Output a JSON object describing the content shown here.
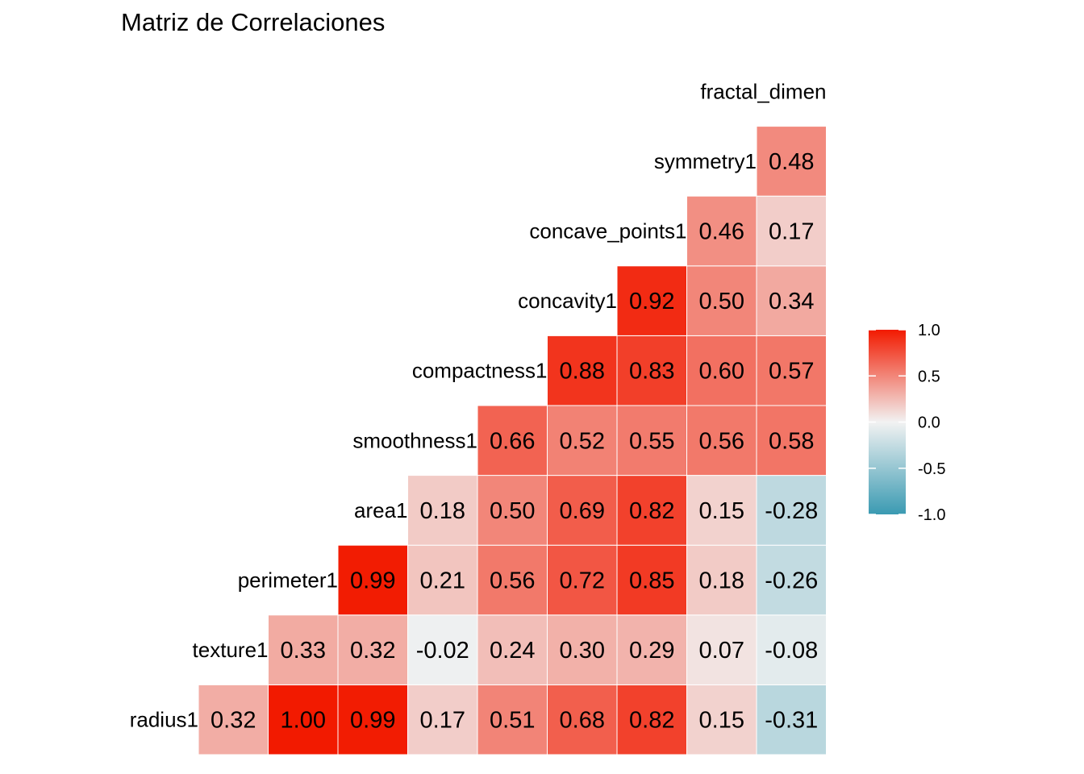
{
  "chart_data": {
    "type": "heatmap",
    "title": "Matriz de Correlaciones",
    "row_labels": [
      "radius1",
      "texture1",
      "perimeter1",
      "area1",
      "smoothness1",
      "compactness1",
      "concavity1",
      "concave_points1",
      "symmetry1",
      "fractal_dimen"
    ],
    "rows": [
      {
        "label": "radius1",
        "values": [
          "0.32",
          "1.00",
          "0.99",
          "0.17",
          "0.51",
          "0.68",
          "0.82",
          "0.15",
          "-0.31"
        ]
      },
      {
        "label": "texture1",
        "values": [
          "0.33",
          "0.32",
          "-0.02",
          "0.24",
          "0.30",
          "0.29",
          "0.07",
          "-0.08"
        ]
      },
      {
        "label": "perimeter1",
        "values": [
          "0.99",
          "0.21",
          "0.56",
          "0.72",
          "0.85",
          "0.18",
          "-0.26"
        ]
      },
      {
        "label": "area1",
        "values": [
          "0.18",
          "0.50",
          "0.69",
          "0.82",
          "0.15",
          "-0.28"
        ]
      },
      {
        "label": "smoothness1",
        "values": [
          "0.66",
          "0.52",
          "0.55",
          "0.56",
          "0.58"
        ]
      },
      {
        "label": "compactness1",
        "values": [
          "0.88",
          "0.83",
          "0.60",
          "0.57"
        ]
      },
      {
        "label": "concavity1",
        "values": [
          "0.92",
          "0.50",
          "0.34"
        ]
      },
      {
        "label": "concave_points1",
        "values": [
          "0.46",
          "0.17"
        ]
      },
      {
        "label": "symmetry1",
        "values": [
          "0.48"
        ]
      }
    ],
    "top_label": "fractal_dimen",
    "color_scale": {
      "low": "#3A9AB2",
      "mid": "#F2F2F2",
      "high": "#F21A00",
      "range": [
        -1,
        1
      ]
    },
    "legend": {
      "position": "right",
      "ticks": [
        "1.0",
        "0.5",
        "0.0",
        "-0.5",
        "-1.0"
      ]
    }
  }
}
